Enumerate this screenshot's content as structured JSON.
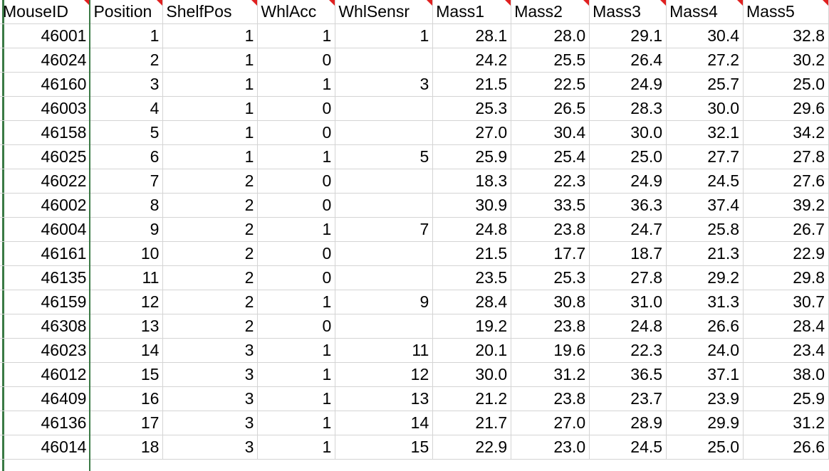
{
  "sheet": {
    "columns": [
      "MouseID",
      "Position",
      "ShelfPos",
      "WhlAcc",
      "WhlSensr",
      "Mass1",
      "Mass2",
      "Mass3",
      "Mass4",
      "Mass5"
    ],
    "rows": [
      [
        "46001",
        "1",
        "1",
        "1",
        "1",
        "28.1",
        "28.0",
        "29.1",
        "30.4",
        "32.8"
      ],
      [
        "46024",
        "2",
        "1",
        "0",
        "",
        "24.2",
        "25.5",
        "26.4",
        "27.2",
        "30.2"
      ],
      [
        "46160",
        "3",
        "1",
        "1",
        "3",
        "21.5",
        "22.5",
        "24.9",
        "25.7",
        "25.0"
      ],
      [
        "46003",
        "4",
        "1",
        "0",
        "",
        "25.3",
        "26.5",
        "28.3",
        "30.0",
        "29.6"
      ],
      [
        "46158",
        "5",
        "1",
        "0",
        "",
        "27.0",
        "30.4",
        "30.0",
        "32.1",
        "34.2"
      ],
      [
        "46025",
        "6",
        "1",
        "1",
        "5",
        "25.9",
        "25.4",
        "25.0",
        "27.7",
        "27.8"
      ],
      [
        "46022",
        "7",
        "2",
        "0",
        "",
        "18.3",
        "22.3",
        "24.9",
        "24.5",
        "27.6"
      ],
      [
        "46002",
        "8",
        "2",
        "0",
        "",
        "30.9",
        "33.5",
        "36.3",
        "37.4",
        "39.2"
      ],
      [
        "46004",
        "9",
        "2",
        "1",
        "7",
        "24.8",
        "23.8",
        "24.7",
        "25.8",
        "26.7"
      ],
      [
        "46161",
        "10",
        "2",
        "0",
        "",
        "21.5",
        "17.7",
        "18.7",
        "21.3",
        "22.9"
      ],
      [
        "46135",
        "11",
        "2",
        "0",
        "",
        "23.5",
        "25.3",
        "27.8",
        "29.2",
        "29.8"
      ],
      [
        "46159",
        "12",
        "2",
        "1",
        "9",
        "28.4",
        "30.8",
        "31.0",
        "31.3",
        "30.7"
      ],
      [
        "46308",
        "13",
        "2",
        "0",
        "",
        "19.2",
        "23.8",
        "24.8",
        "26.6",
        "28.4"
      ],
      [
        "46023",
        "14",
        "3",
        "1",
        "11",
        "20.1",
        "19.6",
        "22.3",
        "24.0",
        "23.4"
      ],
      [
        "46012",
        "15",
        "3",
        "1",
        "12",
        "30.0",
        "31.2",
        "36.5",
        "37.1",
        "38.0"
      ],
      [
        "46409",
        "16",
        "3",
        "1",
        "13",
        "21.2",
        "23.8",
        "23.7",
        "23.9",
        "25.9"
      ],
      [
        "46136",
        "17",
        "3",
        "1",
        "14",
        "21.7",
        "27.0",
        "28.9",
        "29.9",
        "31.2"
      ],
      [
        "46014",
        "18",
        "3",
        "1",
        "15",
        "22.9",
        "23.0",
        "24.5",
        "25.0",
        "26.6"
      ]
    ]
  },
  "colors": {
    "gridline": "#d4d4d4",
    "comment_indicator": "#e02020",
    "freeze_pane_line": "#3a7a45"
  }
}
